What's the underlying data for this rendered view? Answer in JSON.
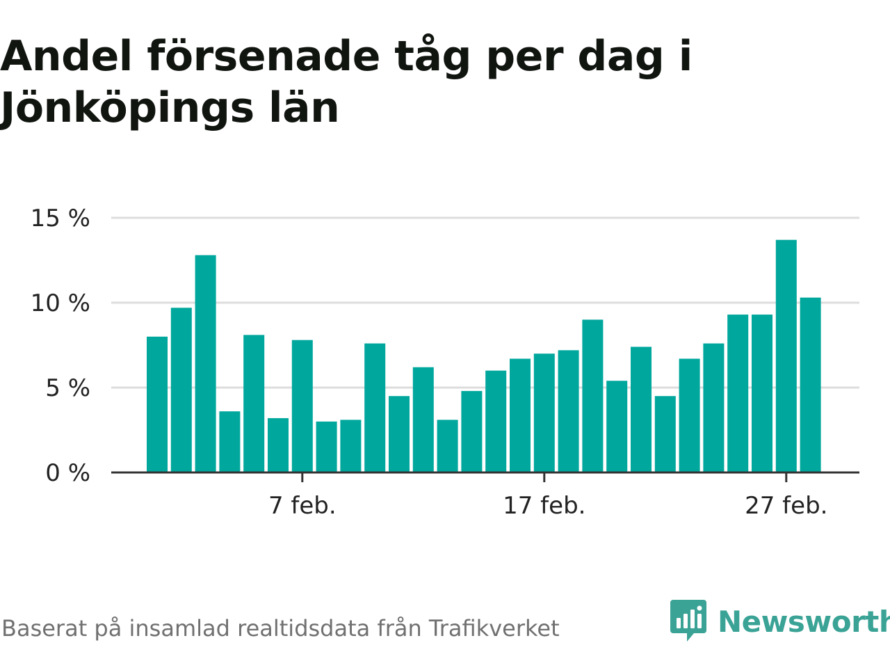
{
  "title": "Andel försenade tåg per dag i Jönköpings län",
  "source": "Baserat på insamlad realtidsdata från Trafikverket",
  "brand": {
    "name": "Newsworthy",
    "icon": "newsworthy-logo-icon",
    "color": "#3aa396"
  },
  "colors": {
    "bar": "#00a79c",
    "grid": "#dddddd",
    "axis": "#333333"
  },
  "chart_data": {
    "type": "bar",
    "title": "Andel försenade tåg per dag i Jönköpings län",
    "xlabel": "",
    "ylabel": "",
    "ylim": [
      0,
      15
    ],
    "y_ticks": [
      {
        "value": 0,
        "label": "0 %"
      },
      {
        "value": 5,
        "label": "5 %"
      },
      {
        "value": 10,
        "label": "10 %"
      },
      {
        "value": 15,
        "label": "15 %"
      }
    ],
    "x_ticks": [
      {
        "day": 7,
        "label": "7 feb."
      },
      {
        "day": 17,
        "label": "17 feb."
      },
      {
        "day": 27,
        "label": "27 feb."
      }
    ],
    "grid": true,
    "legend": "none",
    "days": [
      1,
      2,
      3,
      4,
      5,
      6,
      7,
      8,
      9,
      10,
      11,
      12,
      13,
      14,
      15,
      16,
      17,
      18,
      19,
      20,
      21,
      22,
      23,
      24,
      25,
      26,
      27,
      28
    ],
    "values": [
      8.0,
      9.7,
      12.8,
      3.6,
      8.1,
      3.2,
      7.8,
      3.0,
      3.1,
      7.6,
      4.5,
      6.2,
      3.1,
      4.8,
      6.0,
      6.7,
      7.0,
      7.2,
      9.0,
      5.4,
      7.4,
      4.5,
      6.7,
      7.6,
      9.3,
      9.3,
      13.7,
      10.3
    ]
  }
}
